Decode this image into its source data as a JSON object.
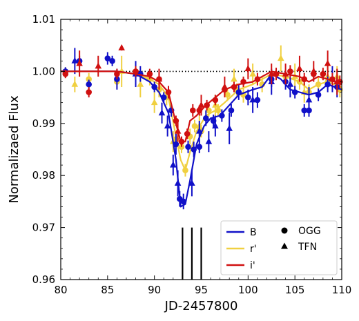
{
  "chart_data": {
    "type": "scatter",
    "xlabel": "JD-2457800",
    "ylabel": "Normalizaed Flux",
    "xlim": [
      80,
      110
    ],
    "ylim": [
      0.96,
      1.01
    ],
    "xticks": [
      80,
      85,
      90,
      95,
      100,
      105,
      110
    ],
    "xtick_labels": [
      "80",
      "85",
      "90",
      "95",
      "100",
      "105",
      "110"
    ],
    "yticks": [
      0.96,
      0.97,
      0.98,
      0.99,
      1.0,
      1.01
    ],
    "ytick_labels": [
      "0.96",
      "0.97",
      "0.98",
      "0.99",
      "1.00",
      "1.01"
    ],
    "reference_line": {
      "y": 1.0,
      "style": "dotted",
      "color": "#000000"
    },
    "event_markers": {
      "x": [
        93.0,
        94.0,
        95.0
      ],
      "y_range": [
        0.96,
        0.97
      ],
      "color": "#000000"
    },
    "legend": {
      "placement": "lower-right",
      "lines": [
        {
          "label": "B",
          "color": "#1010c8"
        },
        {
          "label": "r'",
          "color": "#f0d040"
        },
        {
          "label": "i'",
          "color": "#d01010"
        }
      ],
      "markers": [
        {
          "label": "OGG",
          "marker": "circle"
        },
        {
          "label": "TFN",
          "marker": "triangle"
        }
      ]
    },
    "series": [
      {
        "name": "B",
        "color": "#1010c8",
        "model": [
          [
            80,
            1.0
          ],
          [
            86,
            1.0
          ],
          [
            88,
            0.9995
          ],
          [
            89.5,
            0.998
          ],
          [
            90.5,
            0.996
          ],
          [
            91.5,
            0.992
          ],
          [
            92.3,
            0.983
          ],
          [
            92.8,
            0.974
          ],
          [
            93.3,
            0.9745
          ],
          [
            93.8,
            0.979
          ],
          [
            94.5,
            0.986
          ],
          [
            95.3,
            0.9895
          ],
          [
            96,
            0.991
          ],
          [
            97,
            0.9915
          ],
          [
            98,
            0.9935
          ],
          [
            99,
            0.9955
          ],
          [
            100.5,
            0.9965
          ],
          [
            101.5,
            0.997
          ],
          [
            102.5,
            0.9995
          ],
          [
            103.5,
            0.9985
          ],
          [
            104.5,
            0.9965
          ],
          [
            105.5,
            0.996
          ],
          [
            106.5,
            0.9955
          ],
          [
            107.5,
            0.996
          ],
          [
            108.5,
            0.9975
          ],
          [
            110,
            0.9965
          ]
        ],
        "ogg": [
          [
            80.5,
            1.0
          ],
          [
            82.0,
            1.002
          ],
          [
            83.0,
            0.9975
          ],
          [
            85.0,
            1.0025
          ],
          [
            85.5,
            1.002
          ],
          [
            86.0,
            0.9985
          ],
          [
            88.5,
            0.9995
          ],
          [
            90.0,
            0.997
          ],
          [
            91.0,
            0.995
          ],
          [
            91.8,
            0.9925
          ],
          [
            92.3,
            0.986
          ],
          [
            92.7,
            0.9755
          ],
          [
            93.1,
            0.975
          ],
          [
            93.6,
            0.9855
          ],
          [
            94.2,
            0.985
          ],
          [
            94.8,
            0.9855
          ],
          [
            95.5,
            0.991
          ],
          [
            96.3,
            0.9905
          ],
          [
            97.2,
            0.9915
          ],
          [
            98.2,
            0.9925
          ],
          [
            99.0,
            0.996
          ],
          [
            100.0,
            0.995
          ],
          [
            101.0,
            0.9945
          ],
          [
            102.5,
            0.9985
          ],
          [
            104.0,
            0.998
          ],
          [
            105.0,
            0.996
          ],
          [
            106.0,
            0.9925
          ],
          [
            106.5,
            0.9925
          ],
          [
            107.5,
            0.9955
          ],
          [
            108.5,
            0.9975
          ],
          [
            109.5,
            0.997
          ]
        ],
        "ogg_err": [
          0.0008,
          0.001,
          0.0009,
          0.0012,
          0.001,
          0.002,
          0.0015,
          0.001,
          0.001,
          0.0012,
          0.002,
          0.0015,
          0.0015,
          0.0012,
          0.0015,
          0.0012,
          0.0015,
          0.0012,
          0.0012,
          0.0012,
          0.0015,
          0.0015,
          0.0015,
          0.0015,
          0.0015,
          0.0012,
          0.0012,
          0.0012,
          0.0012,
          0.0015,
          0.002
        ],
        "tfn": [
          [
            81.5,
            1.002
          ],
          [
            88.0,
            0.9995
          ],
          [
            90.8,
            0.992
          ],
          [
            91.4,
            0.9895
          ],
          [
            92.0,
            0.982
          ],
          [
            92.5,
            0.9785
          ],
          [
            94.0,
            0.9785
          ],
          [
            94.8,
            0.9885
          ],
          [
            95.8,
            0.9865
          ],
          [
            96.5,
            0.9895
          ],
          [
            98.0,
            0.989
          ],
          [
            100.5,
            0.9945
          ],
          [
            102.5,
            0.998
          ],
          [
            104.5,
            0.9975
          ],
          [
            106.5,
            0.9945
          ],
          [
            109.0,
            0.9985
          ]
        ],
        "tfn_err": [
          0.0025,
          0.0025,
          0.002,
          0.002,
          0.002,
          0.0025,
          0.0025,
          0.002,
          0.002,
          0.002,
          0.003,
          0.0025,
          0.0025,
          0.0025,
          0.0025,
          0.0025
        ]
      },
      {
        "name": "r'",
        "color": "#f0d040",
        "model": [
          [
            80,
            1.0
          ],
          [
            86,
            1.0
          ],
          [
            88,
            0.9995
          ],
          [
            89.5,
            0.9985
          ],
          [
            90.5,
            0.9975
          ],
          [
            91.5,
            0.995
          ],
          [
            92.3,
            0.9875
          ],
          [
            92.8,
            0.983
          ],
          [
            93.3,
            0.981
          ],
          [
            93.8,
            0.9845
          ],
          [
            94.5,
            0.9885
          ],
          [
            95.5,
            0.9915
          ],
          [
            96.5,
            0.9925
          ],
          [
            97.5,
            0.994
          ],
          [
            99,
            0.9965
          ],
          [
            100.5,
            0.9975
          ],
          [
            102.5,
            0.9995
          ],
          [
            104,
            0.999
          ],
          [
            105.5,
            0.998
          ],
          [
            106.5,
            0.9965
          ],
          [
            107.5,
            0.9975
          ],
          [
            108.5,
            0.998
          ],
          [
            110,
            0.997
          ]
        ],
        "ogg": [
          [
            80.5,
            1.0
          ],
          [
            83.0,
            0.9985
          ],
          [
            86.0,
            0.998
          ],
          [
            88.0,
            1.0
          ],
          [
            89.5,
            0.9985
          ],
          [
            90.5,
            0.9965
          ],
          [
            91.3,
            0.995
          ],
          [
            92.3,
            0.987
          ],
          [
            92.9,
            0.9855
          ],
          [
            93.3,
            0.981
          ],
          [
            93.8,
            0.9875
          ],
          [
            94.3,
            0.9895
          ],
          [
            95.0,
            0.9885
          ],
          [
            95.8,
            0.9925
          ],
          [
            96.8,
            0.9925
          ],
          [
            97.8,
            0.9955
          ],
          [
            98.8,
            0.9965
          ],
          [
            99.5,
            0.9955
          ],
          [
            101.5,
            0.9975
          ],
          [
            104.0,
            0.999
          ],
          [
            105.5,
            0.998
          ],
          [
            106.5,
            0.996
          ],
          [
            107.5,
            0.9975
          ],
          [
            108.5,
            0.998
          ],
          [
            109.8,
            0.9965
          ]
        ],
        "ogg_err": [
          0.0008,
          0.0012,
          0.0012,
          0.0012,
          0.0012,
          0.0015,
          0.0015,
          0.0012,
          0.0012,
          0.0012,
          0.0015,
          0.0012,
          0.0012,
          0.0012,
          0.0012,
          0.0012,
          0.0012,
          0.0015,
          0.0015,
          0.0015,
          0.0015,
          0.0015,
          0.0015,
          0.0015,
          0.0015
        ],
        "tfn": [
          [
            81.5,
            0.9975
          ],
          [
            86.5,
            1.0
          ],
          [
            88.5,
            0.9975
          ],
          [
            90.0,
            0.994
          ],
          [
            92.0,
            0.9865
          ],
          [
            94.8,
            0.9895
          ],
          [
            96.5,
            0.9935
          ],
          [
            98.5,
            0.9985
          ],
          [
            100.5,
            0.9995
          ],
          [
            103.5,
            1.0025
          ],
          [
            105.0,
            0.999
          ],
          [
            106.0,
            0.996
          ],
          [
            108.5,
            0.999
          ],
          [
            109.5,
            0.999
          ]
        ],
        "tfn_err": [
          0.0015,
          0.003,
          0.0025,
          0.002,
          0.002,
          0.002,
          0.002,
          0.002,
          0.002,
          0.0025,
          0.0025,
          0.002,
          0.002,
          0.002
        ]
      },
      {
        "name": "i'",
        "color": "#d01010",
        "model": [
          [
            80,
            1.0
          ],
          [
            86,
            1.0
          ],
          [
            88,
            0.9995
          ],
          [
            89.5,
            0.999
          ],
          [
            90.5,
            0.998
          ],
          [
            91.5,
            0.996
          ],
          [
            92.3,
            0.99
          ],
          [
            92.8,
            0.9865
          ],
          [
            93.3,
            0.9865
          ],
          [
            93.8,
            0.9905
          ],
          [
            94.5,
            0.9915
          ],
          [
            95.5,
            0.9935
          ],
          [
            96.5,
            0.995
          ],
          [
            97.5,
            0.9965
          ],
          [
            99,
            0.9975
          ],
          [
            100.5,
            0.998
          ],
          [
            102.5,
            1.0
          ],
          [
            104,
            0.9995
          ],
          [
            105.5,
            0.999
          ],
          [
            106.5,
            0.998
          ],
          [
            107.5,
            0.999
          ],
          [
            108.5,
            0.9985
          ],
          [
            110,
            0.9975
          ]
        ],
        "ogg": [
          [
            80.5,
            0.9995
          ],
          [
            83.0,
            0.996
          ],
          [
            86.0,
            0.9995
          ],
          [
            88.0,
            1.0
          ],
          [
            89.5,
            0.9995
          ],
          [
            90.5,
            0.9985
          ],
          [
            91.5,
            0.996
          ],
          [
            92.3,
            0.9905
          ],
          [
            92.9,
            0.9865
          ],
          [
            93.5,
            0.988
          ],
          [
            94.1,
            0.9925
          ],
          [
            94.8,
            0.9925
          ],
          [
            95.6,
            0.9935
          ],
          [
            96.5,
            0.9945
          ],
          [
            97.5,
            0.9965
          ],
          [
            98.5,
            0.997
          ],
          [
            99.5,
            0.998
          ],
          [
            101.0,
            0.9985
          ],
          [
            103.0,
            0.9995
          ],
          [
            104.5,
            1.0
          ],
          [
            106.0,
            0.9985
          ],
          [
            107.0,
            0.9995
          ],
          [
            108.0,
            0.9995
          ],
          [
            109.0,
            0.9985
          ],
          [
            109.8,
            0.998
          ]
        ],
        "ogg_err": [
          0.0008,
          0.001,
          0.001,
          0.001,
          0.001,
          0.0012,
          0.0012,
          0.001,
          0.001,
          0.001,
          0.0012,
          0.001,
          0.001,
          0.001,
          0.001,
          0.001,
          0.001,
          0.0012,
          0.0012,
          0.0012,
          0.0012,
          0.0012,
          0.0012,
          0.0012,
          0.0012
        ],
        "tfn": [
          [
            82.0,
            1.0015
          ],
          [
            84.0,
            1.001
          ],
          [
            86.5,
            1.0045
          ],
          [
            90.5,
            0.9985
          ],
          [
            92.5,
            0.9885
          ],
          [
            95.0,
            0.9935
          ],
          [
            97.5,
            0.997
          ],
          [
            100.0,
            1.0005
          ],
          [
            102.5,
            0.9995
          ],
          [
            104.0,
            0.9995
          ],
          [
            105.5,
            1.0005
          ],
          [
            107.0,
            1.0
          ],
          [
            108.5,
            1.0015
          ],
          [
            109.5,
            0.998
          ]
        ],
        "tfn_err": [
          0.0025,
          0.002,
          0.0005,
          0.002,
          0.002,
          0.002,
          0.002,
          0.002,
          0.002,
          0.002,
          0.0025,
          0.002,
          0.0025,
          0.0025
        ]
      }
    ]
  }
}
